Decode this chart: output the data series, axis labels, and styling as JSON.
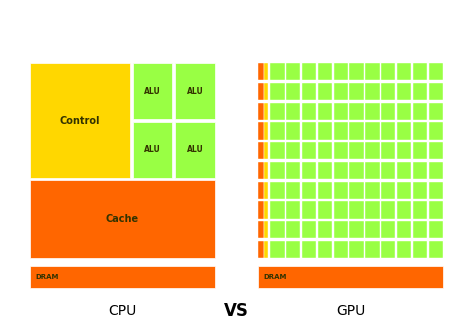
{
  "background_color": "#ffffff",
  "cpu_label": "CPU",
  "gpu_label": "GPU",
  "vs_label": "VS",
  "color_yellow": "#FFD700",
  "color_orange": "#FF6600",
  "color_green": "#99FF44",
  "color_white": "#FFFFFF",
  "color_text": "#333300",
  "num_gpu_rows": 10,
  "num_gpu_cols": 11
}
